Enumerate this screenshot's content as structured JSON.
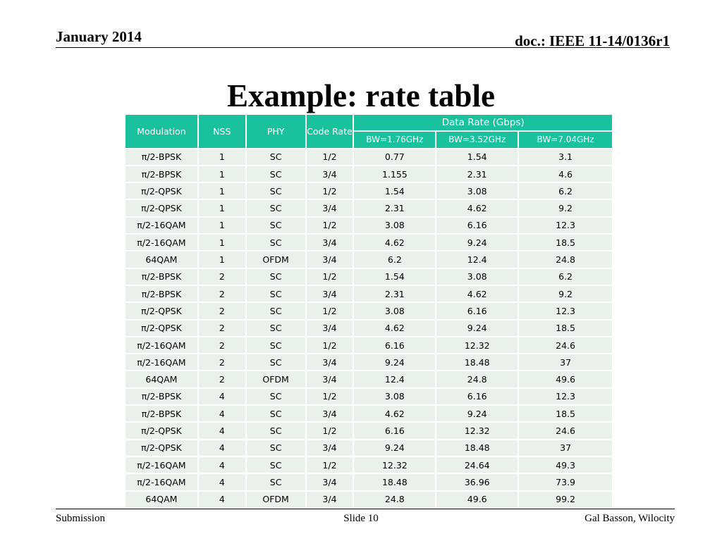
{
  "header": {
    "date": "January 2014",
    "doc": "doc.: IEEE 11-14/0136r1"
  },
  "title": "Example: rate table",
  "table": {
    "group_header": "Data Rate (Gbps)",
    "columns": [
      "Modulation",
      "NSS",
      "PHY",
      "Code Rate",
      "BW=1.76GHz",
      "BW=3.52GHz",
      "BW=7.04GHz"
    ],
    "rows": [
      [
        "π/2-BPSK",
        "1",
        "SC",
        "1/2",
        "0.77",
        "1.54",
        "3.1"
      ],
      [
        "π/2-BPSK",
        "1",
        "SC",
        "3/4",
        "1.155",
        "2.31",
        "4.6"
      ],
      [
        "π/2-QPSK",
        "1",
        "SC",
        "1/2",
        "1.54",
        "3.08",
        "6.2"
      ],
      [
        "π/2-QPSK",
        "1",
        "SC",
        "3/4",
        "2.31",
        "4.62",
        "9.2"
      ],
      [
        "π/2-16QAM",
        "1",
        "SC",
        "1/2",
        "3.08",
        "6.16",
        "12.3"
      ],
      [
        "π/2-16QAM",
        "1",
        "SC",
        "3/4",
        "4.62",
        "9.24",
        "18.5"
      ],
      [
        "64QAM",
        "1",
        "OFDM",
        "3/4",
        "6.2",
        "12.4",
        "24.8"
      ],
      [
        "π/2-BPSK",
        "2",
        "SC",
        "1/2",
        "1.54",
        "3.08",
        "6.2"
      ],
      [
        "π/2-BPSK",
        "2",
        "SC",
        "3/4",
        "2.31",
        "4.62",
        "9.2"
      ],
      [
        "π/2-QPSK",
        "2",
        "SC",
        "1/2",
        "3.08",
        "6.16",
        "12.3"
      ],
      [
        "π/2-QPSK",
        "2",
        "SC",
        "3/4",
        "4.62",
        "9.24",
        "18.5"
      ],
      [
        "π/2-16QAM",
        "2",
        "SC",
        "1/2",
        "6.16",
        "12.32",
        "24.6"
      ],
      [
        "π/2-16QAM",
        "2",
        "SC",
        "3/4",
        "9.24",
        "18.48",
        "37"
      ],
      [
        "64QAM",
        "2",
        "OFDM",
        "3/4",
        "12.4",
        "24.8",
        "49.6"
      ],
      [
        "π/2-BPSK",
        "4",
        "SC",
        "1/2",
        "3.08",
        "6.16",
        "12.3"
      ],
      [
        "π/2-BPSK",
        "4",
        "SC",
        "3/4",
        "4.62",
        "9.24",
        "18.5"
      ],
      [
        "π/2-QPSK",
        "4",
        "SC",
        "1/2",
        "6.16",
        "12.32",
        "24.6"
      ],
      [
        "π/2-QPSK",
        "4",
        "SC",
        "3/4",
        "9.24",
        "18.48",
        "37"
      ],
      [
        "π/2-16QAM",
        "4",
        "SC",
        "1/2",
        "12.32",
        "24.64",
        "49.3"
      ],
      [
        "π/2-16QAM",
        "4",
        "SC",
        "3/4",
        "18.48",
        "36.96",
        "73.9"
      ],
      [
        "64QAM",
        "4",
        "OFDM",
        "3/4",
        "24.8",
        "49.6",
        "99.2"
      ]
    ]
  },
  "footer": {
    "left": "Submission",
    "center": "Slide 10",
    "right": "Gal Basson, Wilocity"
  },
  "colors": {
    "header_fill": "#19c29c",
    "cell_fill": "#eaf0ea"
  }
}
